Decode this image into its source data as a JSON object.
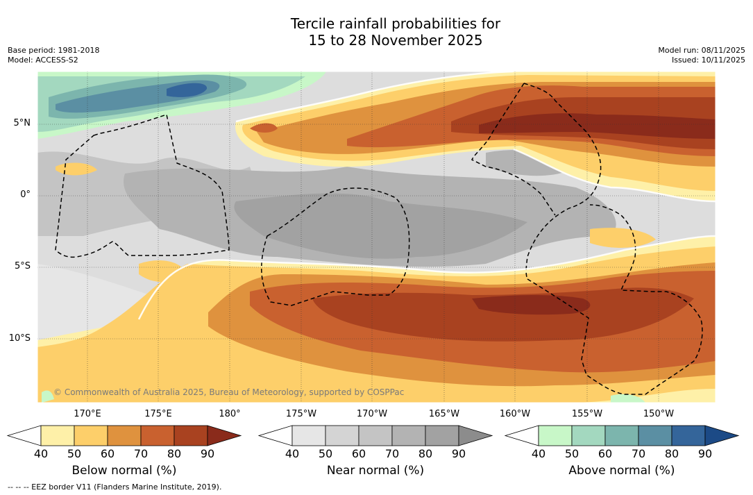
{
  "title_line1": "Tercile rainfall probabilities for",
  "title_line2": "15 to 28 November 2025",
  "base_period": "Base period: 1981-2018",
  "model": "Model: ACCESS-S2",
  "model_run": "Model run: 08/11/2025",
  "issued": "Issued: 10/11/2025",
  "lat_labels": [
    "5°N",
    "0°",
    "5°S",
    "10°S"
  ],
  "lon_labels": [
    "170°E",
    "175°E",
    "180°",
    "175°W",
    "170°W",
    "165°W",
    "160°W",
    "155°W",
    "150°W"
  ],
  "credit": "© Commonwealth of Australia 2025, Bureau of Meteorology, supported by COSPPac",
  "footer": "-- -- -- EEZ border V11 (Flanders Marine Institute, 2019).",
  "legend": {
    "ticks": [
      "40",
      "50",
      "60",
      "70",
      "80",
      "90"
    ],
    "below": {
      "label": "Below normal (%)",
      "colors": [
        "#ffffff",
        "#fef0a8",
        "#fdcf6a",
        "#df923e",
        "#c9612f",
        "#a94220",
        "#8a2b1b"
      ]
    },
    "near": {
      "label": "Near normal (%)",
      "colors": [
        "#ffffff",
        "#e6e6e6",
        "#d4d4d4",
        "#c4c4c4",
        "#b3b3b3",
        "#a2a2a2",
        "#8c8c8c"
      ]
    },
    "above": {
      "label": "Above normal (%)",
      "colors": [
        "#ffffff",
        "#c8f7c8",
        "#a3d8bf",
        "#7cb5ad",
        "#5b8fa3",
        "#34659a",
        "#1c4a86"
      ]
    }
  }
}
